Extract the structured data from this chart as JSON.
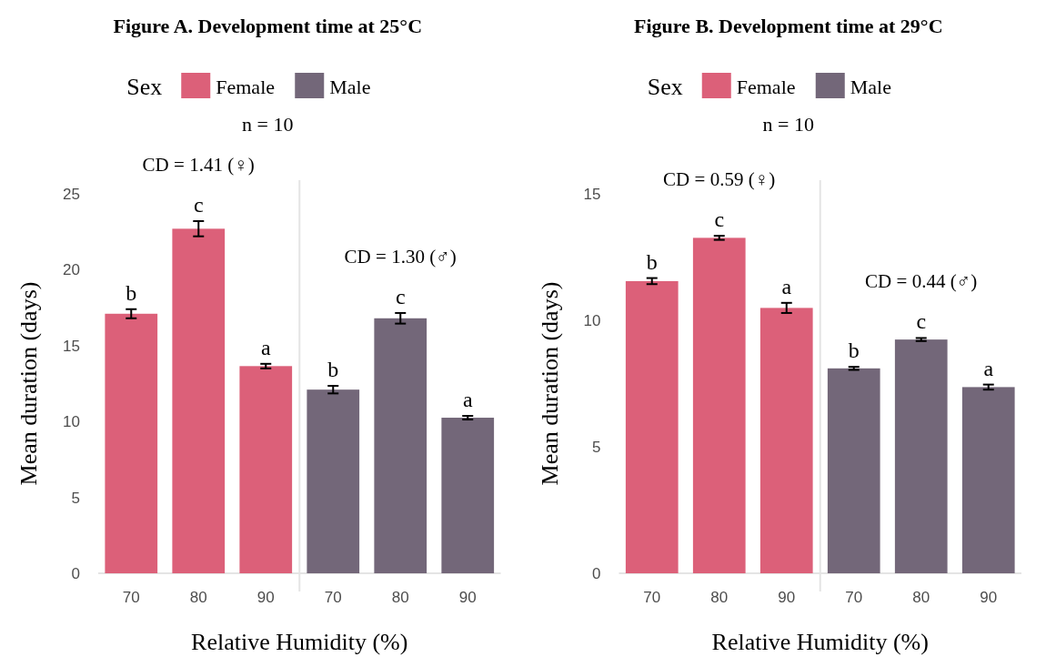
{
  "chart_data": [
    {
      "type": "bar",
      "title": "Figure A. Development time at 25°C",
      "subtitle": "n = 10",
      "legend_title": "Sex",
      "legend": "top",
      "xlabel": "Relative Humidity (%)",
      "ylabel": "Mean duration (days)",
      "categories": [
        "70",
        "80",
        "90",
        "70",
        "80",
        "90"
      ],
      "ylim": [
        0,
        25
      ],
      "yticks": [
        0,
        5,
        10,
        15,
        20,
        25
      ],
      "series": [
        {
          "name": "Female",
          "color": "#dc6079",
          "values": [
            17.1,
            22.7,
            13.65,
            null,
            null,
            null
          ],
          "errors": [
            0.3,
            0.5,
            0.15,
            null,
            null,
            null
          ],
          "value_labels": [
            "b",
            "c",
            "a",
            null,
            null,
            null
          ]
        },
        {
          "name": "Male",
          "color": "#736779",
          "values": [
            null,
            null,
            null,
            12.1,
            16.8,
            10.25
          ],
          "errors": [
            null,
            null,
            null,
            0.25,
            0.35,
            0.12
          ],
          "value_labels": [
            null,
            null,
            null,
            "b",
            "c",
            "a"
          ]
        }
      ],
      "annotations": [
        "CD = 1.41 (♀)",
        "CD = 1.30 (♂)"
      ]
    },
    {
      "type": "bar",
      "title": "Figure B. Development time at 29°C",
      "subtitle": "n = 10",
      "legend_title": "Sex",
      "legend": "top",
      "xlabel": "Relative Humidity (%)",
      "ylabel": "Mean duration (days)",
      "categories": [
        "70",
        "80",
        "90",
        "70",
        "80",
        "90"
      ],
      "ylim": [
        0,
        15
      ],
      "yticks": [
        0,
        5,
        10,
        15
      ],
      "series": [
        {
          "name": "Female",
          "color": "#dc6079",
          "values": [
            11.55,
            13.26,
            10.49,
            null,
            null,
            null
          ],
          "errors": [
            0.12,
            0.08,
            0.2,
            null,
            null,
            null
          ],
          "value_labels": [
            "b",
            "c",
            "a",
            null,
            null,
            null
          ]
        },
        {
          "name": "Male",
          "color": "#736779",
          "values": [
            null,
            null,
            null,
            8.1,
            9.24,
            7.36
          ],
          "errors": [
            null,
            null,
            null,
            0.06,
            0.06,
            0.1
          ],
          "value_labels": [
            null,
            null,
            null,
            "b",
            "c",
            "a"
          ]
        }
      ],
      "annotations": [
        "CD = 0.59 (♀)",
        "CD = 0.44 (♂)"
      ]
    }
  ]
}
